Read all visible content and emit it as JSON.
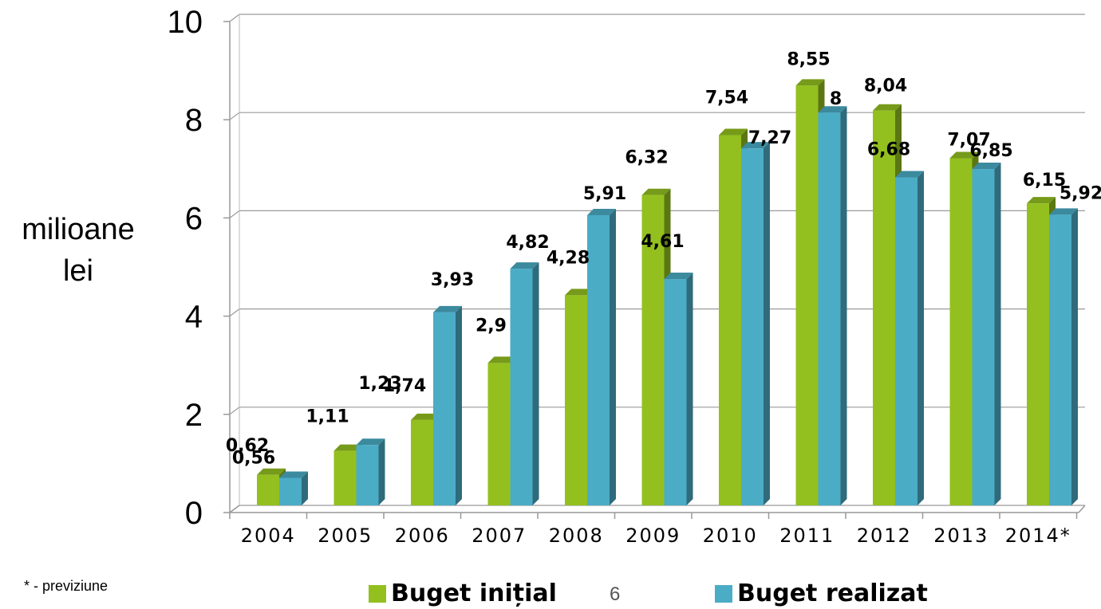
{
  "chart_data": {
    "type": "bar",
    "ylabel_lines": [
      "milioane",
      "lei"
    ],
    "categories": [
      "2004",
      "2005",
      "2006",
      "2007",
      "2008",
      "2009",
      "2010",
      "2011",
      "2012",
      "2013",
      "2014*"
    ],
    "series": [
      {
        "name": "Buget inițial",
        "color": "#93c01f",
        "values": [
          0.62,
          1.11,
          1.74,
          2.9,
          4.28,
          6.32,
          7.54,
          8.55,
          8.04,
          7.07,
          6.15
        ],
        "labels": [
          "0,62",
          "1,11",
          "1,74",
          "2,9",
          "4,28",
          "6,32",
          "7,54",
          "8,55",
          "8,04",
          "7,07",
          "6,15"
        ]
      },
      {
        "name": "Buget realizat",
        "color": "#4bacc6",
        "values": [
          0.56,
          1.23,
          3.93,
          4.82,
          5.91,
          4.61,
          7.27,
          8,
          6.68,
          6.85,
          5.92
        ],
        "labels": [
          "0,56",
          "1,23",
          "3,93",
          "4,82",
          "5,91",
          "4,61",
          "7,27",
          "8",
          "6,68",
          "6,85",
          "5,92"
        ]
      }
    ],
    "ylim": [
      0,
      10
    ],
    "yticks": [
      "0",
      "2",
      "4",
      "6",
      "8",
      "10"
    ],
    "ytick_values": [
      0,
      2,
      4,
      6,
      8,
      10
    ],
    "grid": true,
    "legend": "bottom"
  },
  "footnote": "* - previziune",
  "page_number": "6"
}
